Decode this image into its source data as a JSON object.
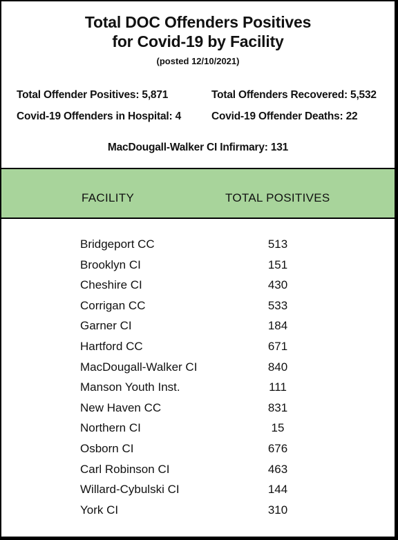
{
  "title": {
    "line1": "Total  DOC Offenders Positives",
    "line2": "for Covid-19 by Facility",
    "posted": "(posted 12/10/2021)"
  },
  "summary": {
    "total_positives": "Total Offender Positives: 5,871",
    "total_recovered": "Total Offenders Recovered: 5,532",
    "in_hospital": "Covid-19 Offenders in  Hospital: 4",
    "deaths": "Covid-19 Offender Deaths: 22",
    "infirmary": "MacDougall-Walker CI Infirmary:  131"
  },
  "table": {
    "header_color": "#a8d49b",
    "columns": [
      "FACILITY",
      "TOTAL POSITIVES"
    ],
    "rows": [
      {
        "facility": "Bridgeport CC",
        "positives": "513"
      },
      {
        "facility": "Brooklyn CI",
        "positives": "151"
      },
      {
        "facility": "Cheshire CI",
        "positives": "430"
      },
      {
        "facility": "Corrigan CC",
        "positives": "533"
      },
      {
        "facility": "Garner CI",
        "positives": "184"
      },
      {
        "facility": "Hartford CC",
        "positives": "671"
      },
      {
        "facility": "MacDougall-Walker CI",
        "positives": "840"
      },
      {
        "facility": "Manson Youth Inst.",
        "positives": "111"
      },
      {
        "facility": "New Haven CC",
        "positives": "831"
      },
      {
        "facility": "Northern CI",
        "positives": "15"
      },
      {
        "facility": "Osborn CI",
        "positives": "676"
      },
      {
        "facility": "Carl Robinson CI",
        "positives": "463"
      },
      {
        "facility": "Willard-Cybulski CI",
        "positives": "144"
      },
      {
        "facility": "York CI",
        "positives": "310"
      }
    ]
  }
}
